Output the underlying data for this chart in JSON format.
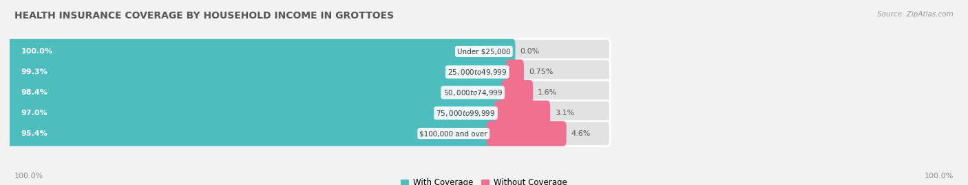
{
  "title": "HEALTH INSURANCE COVERAGE BY HOUSEHOLD INCOME IN GROTTOES",
  "source": "Source: ZipAtlas.com",
  "categories": [
    "Under $25,000",
    "$25,000 to $49,999",
    "$50,000 to $74,999",
    "$75,000 to $99,999",
    "$100,000 and over"
  ],
  "with_coverage": [
    100.0,
    99.3,
    98.4,
    97.0,
    95.4
  ],
  "without_coverage": [
    0.0,
    0.75,
    1.6,
    3.1,
    4.6
  ],
  "with_coverage_labels": [
    "100.0%",
    "99.3%",
    "98.4%",
    "97.0%",
    "95.4%"
  ],
  "without_coverage_labels": [
    "0.0%",
    "0.75%",
    "1.6%",
    "3.1%",
    "4.6%"
  ],
  "with_coverage_color": "#4dbdbe",
  "without_coverage_color": "#f07090",
  "bg_color": "#f2f2f2",
  "bar_bg_color": "#e2e2e2",
  "title_fontsize": 10,
  "label_fontsize": 8,
  "cat_fontsize": 7.5,
  "tick_fontsize": 8,
  "bar_height": 0.62,
  "total_bar_width": 62,
  "pink_scale": 1.8,
  "xlim": [
    0,
    100
  ]
}
